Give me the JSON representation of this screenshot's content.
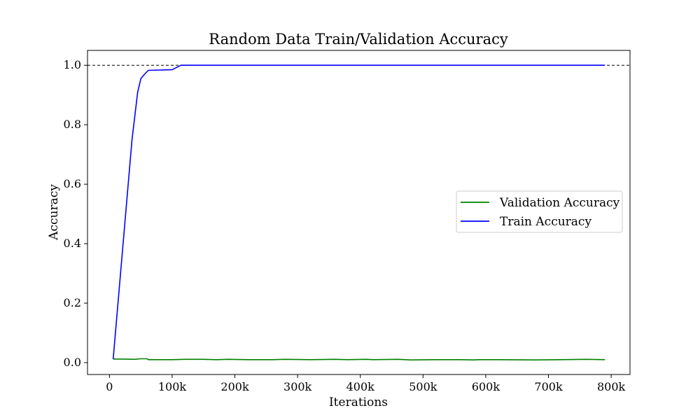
{
  "chart_data": {
    "type": "line",
    "title": "Random Data Train/Validation Accuracy",
    "xlabel": "Iterations",
    "ylabel": "Accuracy",
    "xlim": [
      -35000,
      830000
    ],
    "ylim": [
      -0.04,
      1.05
    ],
    "xticks": [
      0,
      100000,
      200000,
      300000,
      400000,
      500000,
      600000,
      700000,
      800000
    ],
    "xtick_labels": [
      "0",
      "100k",
      "200k",
      "300k",
      "400k",
      "500k",
      "600k",
      "700k",
      "800k"
    ],
    "yticks": [
      0.0,
      0.2,
      0.4,
      0.6,
      0.8,
      1.0
    ],
    "ytick_labels": [
      "0.0",
      "0.2",
      "0.4",
      "0.6",
      "0.8",
      "1.0"
    ],
    "grid": false,
    "legend_position": "center-right",
    "reference_line": {
      "y": 1.0,
      "style": "dashed",
      "color": "#000000"
    },
    "series": [
      {
        "name": "Validation Accuracy",
        "color": "#008000",
        "x": [
          6000,
          20000,
          40000,
          50000,
          60000,
          62000,
          100000,
          120000,
          150000,
          170000,
          190000,
          220000,
          260000,
          280000,
          320000,
          360000,
          380000,
          410000,
          420000,
          460000,
          480000,
          520000,
          560000,
          580000,
          590000,
          620000,
          680000,
          720000,
          760000,
          790000
        ],
        "y": [
          0.012,
          0.012,
          0.011,
          0.013,
          0.013,
          0.01,
          0.01,
          0.011,
          0.011,
          0.01,
          0.011,
          0.01,
          0.01,
          0.011,
          0.01,
          0.011,
          0.01,
          0.011,
          0.01,
          0.011,
          0.009,
          0.01,
          0.01,
          0.009,
          0.01,
          0.01,
          0.009,
          0.01,
          0.011,
          0.01
        ]
      },
      {
        "name": "Train Accuracy",
        "color": "#0000ff",
        "x": [
          6000,
          36000,
          45000,
          50000,
          56000,
          62000,
          100000,
          114000,
          120000,
          200000,
          400000,
          600000,
          790000
        ],
        "y": [
          0.012,
          0.75,
          0.91,
          0.955,
          0.97,
          0.983,
          0.985,
          1.0,
          1.0,
          1.0,
          1.0,
          1.0,
          1.0
        ]
      }
    ]
  }
}
